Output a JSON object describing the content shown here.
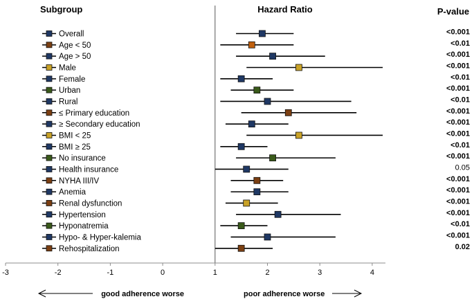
{
  "chart_data": {
    "type": "forest",
    "headers": {
      "subgroup": "Subgroup",
      "hazard_ratio": "Hazard Ratio",
      "pvalue": "P-value"
    },
    "xlim": [
      -3,
      4.2
    ],
    "x_ticks": [
      "-3",
      "-2",
      "-1",
      "0",
      "1",
      "2",
      "3",
      "4"
    ],
    "reference_line": 1,
    "rows": [
      {
        "label": "Overall",
        "hr": 1.9,
        "lo": 1.4,
        "hi": 2.5,
        "p": "<0.001",
        "bold": true,
        "legend_color": "#1f3864",
        "marker_color": "#1f3864"
      },
      {
        "label": "Age < 50",
        "hr": 1.7,
        "lo": 1.1,
        "hi": 2.5,
        "p": "<0.01",
        "bold": true,
        "legend_color": "#7b3f12",
        "marker_color": "#c0600e"
      },
      {
        "label": "Age > 50",
        "hr": 2.1,
        "lo": 1.4,
        "hi": 3.1,
        "p": "<0.001",
        "bold": true,
        "legend_color": "#1f3864",
        "marker_color": "#1f3864"
      },
      {
        "label": "Male",
        "hr": 2.6,
        "lo": 1.6,
        "hi": 4.2,
        "p": "<0.001",
        "bold": true,
        "legend_color": "#c9a227",
        "marker_color": "#c9a227"
      },
      {
        "label": "Female",
        "hr": 1.5,
        "lo": 1.1,
        "hi": 2.1,
        "p": "<0.01",
        "bold": true,
        "legend_color": "#1f3864",
        "marker_color": "#1f3864"
      },
      {
        "label": "Urban",
        "hr": 1.8,
        "lo": 1.3,
        "hi": 2.5,
        "p": "<0.001",
        "bold": true,
        "legend_color": "#3a5a1a",
        "marker_color": "#3a5a1a"
      },
      {
        "label": "Rural",
        "hr": 2.0,
        "lo": 1.1,
        "hi": 3.6,
        "p": "<0.01",
        "bold": true,
        "legend_color": "#1f3864",
        "marker_color": "#1f3864"
      },
      {
        "label": "≤ Primary education",
        "hr": 2.4,
        "lo": 1.5,
        "hi": 3.7,
        "p": "<0.001",
        "bold": true,
        "legend_color": "#7b3f12",
        "marker_color": "#7b3f12"
      },
      {
        "label": "≥ Secondary education",
        "hr": 1.7,
        "lo": 1.2,
        "hi": 2.4,
        "p": "<0.001",
        "bold": true,
        "legend_color": "#1f3864",
        "marker_color": "#1f3864"
      },
      {
        "label": "BMI < 25",
        "hr": 2.6,
        "lo": 1.6,
        "hi": 4.2,
        "p": "<0.001",
        "bold": true,
        "legend_color": "#c9a227",
        "marker_color": "#c9a227"
      },
      {
        "label": "BMI ≥ 25",
        "hr": 1.5,
        "lo": 1.1,
        "hi": 2.0,
        "p": "<0.01",
        "bold": true,
        "legend_color": "#1f3864",
        "marker_color": "#1f3864"
      },
      {
        "label": "No insurance",
        "hr": 2.1,
        "lo": 1.4,
        "hi": 3.3,
        "p": "<0.001",
        "bold": true,
        "legend_color": "#3a5a1a",
        "marker_color": "#3a5a1a"
      },
      {
        "label": "Health insurance",
        "hr": 1.6,
        "lo": 1.0,
        "hi": 2.4,
        "p": "0.05",
        "bold": false,
        "legend_color": "#1f3864",
        "marker_color": "#1f3864"
      },
      {
        "label": "NYHA III/IV",
        "hr": 1.8,
        "lo": 1.3,
        "hi": 2.3,
        "p": "<0.001",
        "bold": true,
        "legend_color": "#7b3f12",
        "marker_color": "#7b3f12"
      },
      {
        "label": "Anemia",
        "hr": 1.8,
        "lo": 1.3,
        "hi": 2.4,
        "p": "<0.001",
        "bold": true,
        "legend_color": "#1f3864",
        "marker_color": "#1f3864"
      },
      {
        "label": "Renal dysfunction",
        "hr": 1.6,
        "lo": 1.2,
        "hi": 2.2,
        "p": "<0.001",
        "bold": true,
        "legend_color": "#7b3f12",
        "marker_color": "#c9a227"
      },
      {
        "label": "Hypertension",
        "hr": 2.2,
        "lo": 1.4,
        "hi": 3.4,
        "p": "<0.001",
        "bold": true,
        "legend_color": "#1f3864",
        "marker_color": "#1f3864"
      },
      {
        "label": "Hyponatremia",
        "hr": 1.5,
        "lo": 1.1,
        "hi": 2.0,
        "p": "<0.01",
        "bold": true,
        "legend_color": "#3a5a1a",
        "marker_color": "#3a5a1a"
      },
      {
        "label": "Hypo- & Hyper-kalemia",
        "hr": 2.0,
        "lo": 1.3,
        "hi": 3.3,
        "p": "<0.001",
        "bold": true,
        "legend_color": "#1f3864",
        "marker_color": "#1f3864"
      },
      {
        "label": "Rehospitalization",
        "hr": 1.5,
        "lo": 1.0,
        "hi": 2.1,
        "p": "0.02",
        "bold": true,
        "legend_color": "#7b3f12",
        "marker_color": "#7b3f12"
      }
    ],
    "annotations": {
      "left": "good adherence worse",
      "right": "poor adherence worse"
    },
    "grid": false,
    "line_color": "#000000"
  }
}
